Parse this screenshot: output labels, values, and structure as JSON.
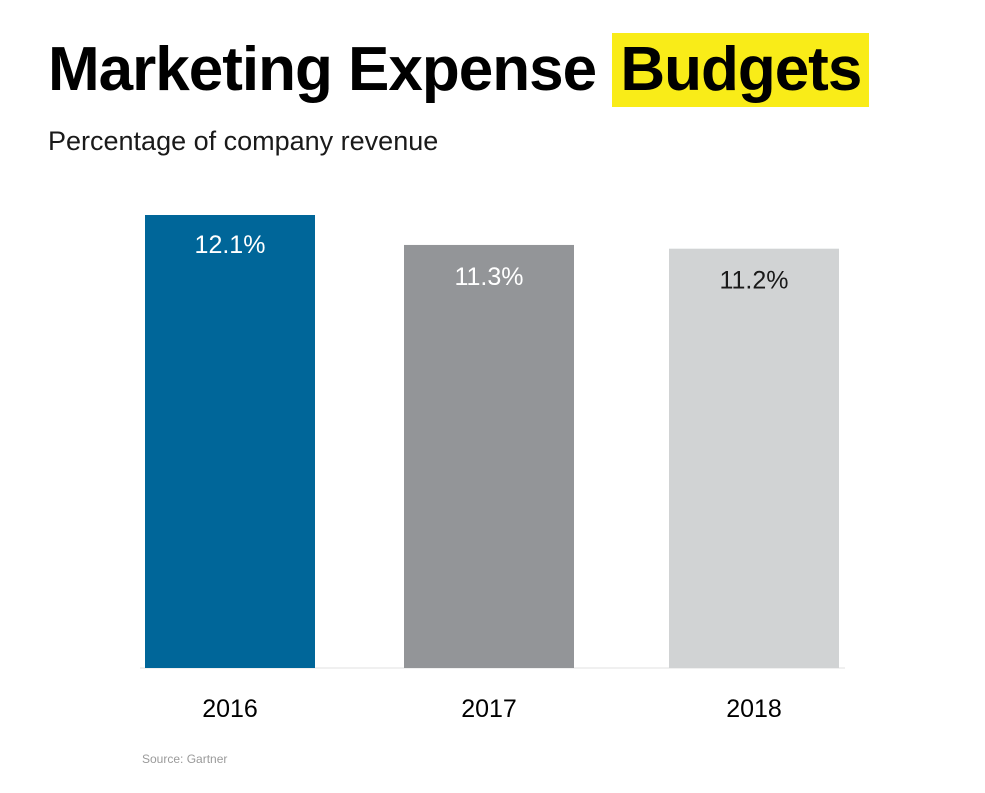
{
  "title": {
    "main": "Marketing Expense ",
    "highlight": "Budgets"
  },
  "subtitle": "Percentage of company revenue",
  "source": "Source: Gartner",
  "colors": {
    "highlight": "#f9ec18",
    "bars": [
      "#006699",
      "#939598",
      "#d1d3d4"
    ],
    "labels": [
      "#ffffff",
      "#ffffff",
      "#1a1a1a"
    ]
  },
  "chart_data": {
    "type": "bar",
    "title": "Marketing Expense Budgets",
    "subtitle": "Percentage of company revenue",
    "categories": [
      "2016",
      "2017",
      "2018"
    ],
    "values": [
      12.1,
      11.3,
      11.2
    ],
    "data_labels": [
      "12.1%",
      "11.3%",
      "11.2%"
    ],
    "xlabel": "",
    "ylabel": "",
    "ylim": [
      0,
      12.1
    ],
    "grid": false,
    "legend": "none"
  }
}
